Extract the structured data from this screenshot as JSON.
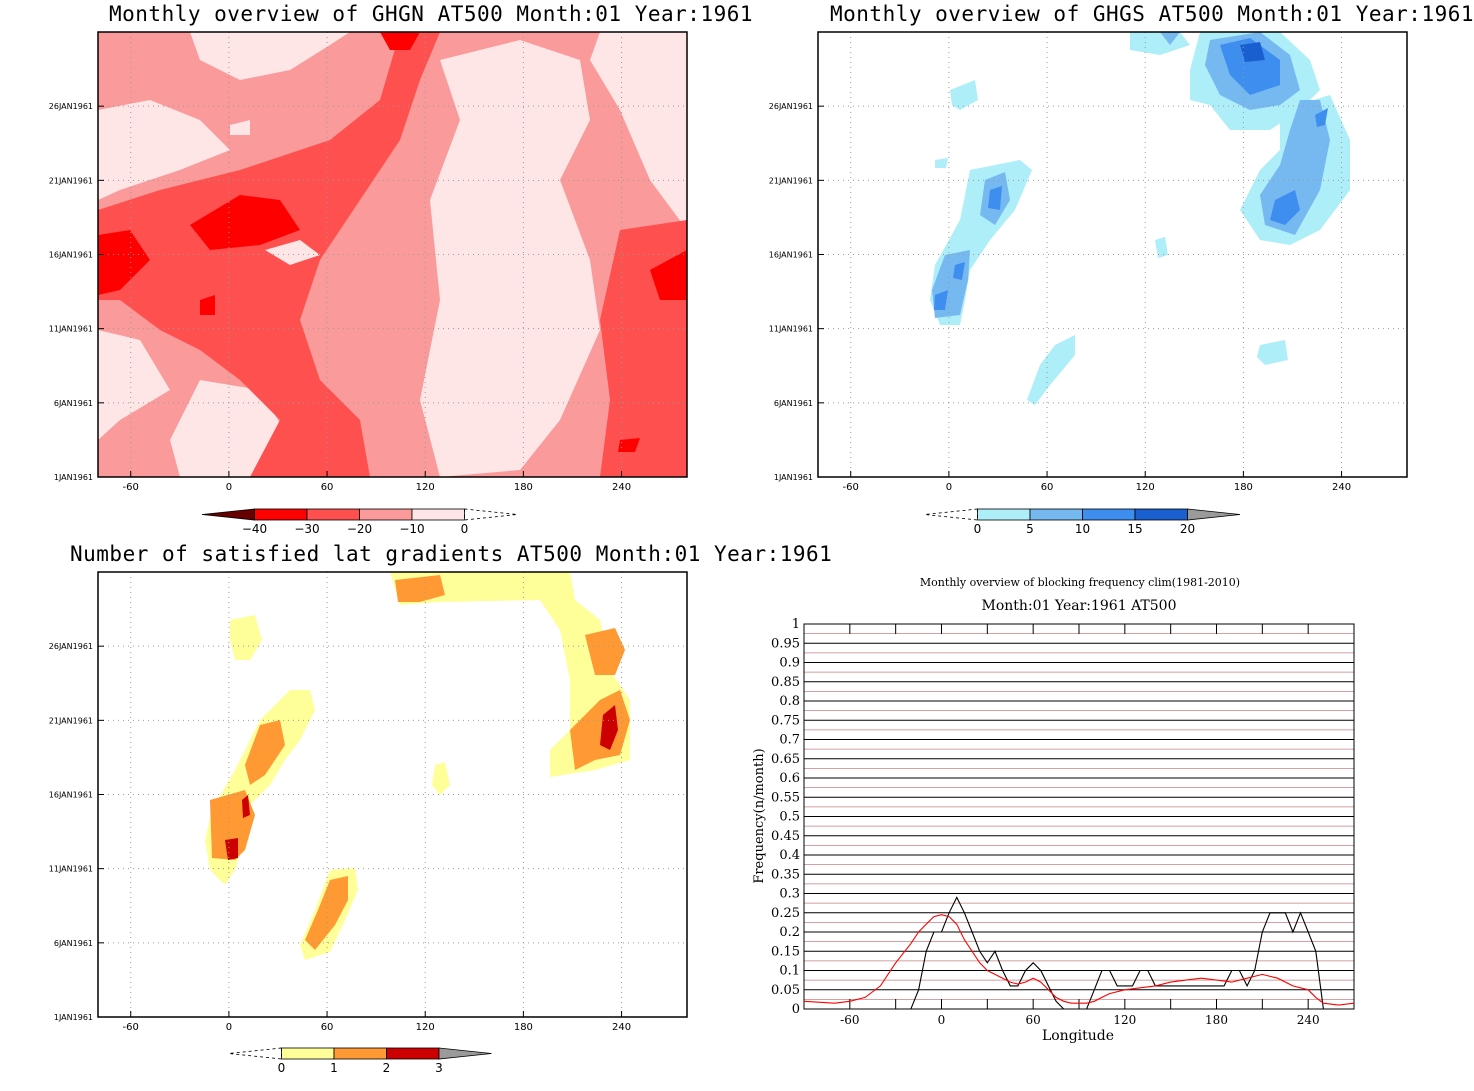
{
  "colors": {
    "red_scale": [
      "#660000",
      "#ff0000",
      "#ff5050",
      "#fa9a9a",
      "#ffe6e6"
    ],
    "blue_scale": [
      "#aeeef8",
      "#76b8f0",
      "#3e8ef0",
      "#1a5fd0",
      "#9a9a9a"
    ],
    "warm_scale": [
      "#ffff99",
      "#ff9933",
      "#cc0000",
      "#9a9a9a"
    ]
  },
  "chart_data": [
    {
      "type": "heatmap",
      "title": "Monthly overview of GHGN AT500 Month:01 Year:1961",
      "x_ticks": [
        "-60",
        "0",
        "60",
        "120",
        "180",
        "240"
      ],
      "y_ticks": [
        "1JAN1961",
        "6JAN1961",
        "11JAN1961",
        "16JAN1961",
        "21JAN1961",
        "26JAN1961"
      ],
      "xlim": [
        -80,
        280
      ],
      "ylim": [
        "1JAN1961",
        "31JAN1961"
      ],
      "grid": true,
      "colorbar": {
        "labels": [
          "−40",
          "−30",
          "−20",
          "−10",
          "0"
        ]
      }
    },
    {
      "type": "heatmap",
      "title": "Monthly overview of GHGS AT500 Month:01 Year:1961",
      "x_ticks": [
        "-60",
        "0",
        "60",
        "120",
        "180",
        "240"
      ],
      "y_ticks": [
        "1JAN1961",
        "6JAN1961",
        "11JAN1961",
        "16JAN1961",
        "21JAN1961",
        "26JAN1961"
      ],
      "xlim": [
        -80,
        280
      ],
      "ylim": [
        "1JAN1961",
        "31JAN1961"
      ],
      "grid": true,
      "colorbar": {
        "labels": [
          "0",
          "5",
          "10",
          "15",
          "20"
        ]
      }
    },
    {
      "type": "heatmap",
      "title": "Number of satisfied lat gradients AT500 Month:01 Year:1961",
      "x_ticks": [
        "-60",
        "0",
        "60",
        "120",
        "180",
        "240"
      ],
      "y_ticks": [
        "1JAN1961",
        "6JAN1961",
        "11JAN1961",
        "16JAN1961",
        "21JAN1961",
        "26JAN1961"
      ],
      "xlim": [
        -80,
        280
      ],
      "ylim": [
        "1JAN1961",
        "31JAN1961"
      ],
      "grid": true,
      "colorbar": {
        "labels": [
          "0",
          "1",
          "2",
          "3"
        ]
      }
    },
    {
      "type": "line",
      "title": "Monthly overview of blocking frequency clim(1981-2010)",
      "subtitle": "Month:01 Year:1961  AT500",
      "xlabel": "Longitude",
      "ylabel": "Frequency(n/month)",
      "xlim": [
        -90,
        270
      ],
      "ylim": [
        0,
        1
      ],
      "x_ticks": [
        "-60",
        "0",
        "60",
        "120",
        "180",
        "240"
      ],
      "y_ticks": [
        "0",
        "0.05",
        "0.1",
        "0.15",
        "0.2",
        "0.25",
        "0.3",
        "0.35",
        "0.4",
        "0.45",
        "0.5",
        "0.55",
        "0.6",
        "0.65",
        "0.7",
        "0.75",
        "0.8",
        "0.85",
        "0.9",
        "0.95",
        "1"
      ],
      "series": [
        {
          "color": "#000000",
          "x": [
            -90,
            -20,
            -15,
            -10,
            -5,
            0,
            5,
            10,
            15,
            20,
            25,
            30,
            35,
            40,
            45,
            50,
            55,
            60,
            65,
            70,
            75,
            80,
            85,
            90,
            95,
            100,
            105,
            110,
            115,
            120,
            125,
            130,
            135,
            140,
            145,
            150,
            155,
            160,
            165,
            170,
            175,
            180,
            185,
            190,
            195,
            200,
            205,
            210,
            215,
            220,
            225,
            230,
            235,
            240,
            245,
            250,
            270
          ],
          "y": [
            0,
            0,
            0.05,
            0.15,
            0.2,
            0.2,
            0.25,
            0.29,
            0.25,
            0.2,
            0.15,
            0.12,
            0.15,
            0.1,
            0.06,
            0.06,
            0.1,
            0.12,
            0.1,
            0.06,
            0.02,
            0,
            0,
            0,
            0,
            0.05,
            0.1,
            0.1,
            0.06,
            0.06,
            0.06,
            0.1,
            0.1,
            0.06,
            0.06,
            0.06,
            0.06,
            0.06,
            0.06,
            0.06,
            0.06,
            0.06,
            0.06,
            0.1,
            0.1,
            0.06,
            0.1,
            0.2,
            0.25,
            0.25,
            0.25,
            0.2,
            0.25,
            0.2,
            0.15,
            0,
            0
          ]
        },
        {
          "color": "#ff0000",
          "x": [
            -90,
            -70,
            -60,
            -50,
            -40,
            -30,
            -20,
            -15,
            -10,
            -5,
            0,
            5,
            10,
            15,
            20,
            25,
            30,
            35,
            40,
            45,
            50,
            55,
            60,
            65,
            70,
            75,
            80,
            85,
            90,
            95,
            100,
            105,
            110,
            120,
            130,
            140,
            150,
            160,
            170,
            180,
            190,
            200,
            210,
            220,
            230,
            240,
            245,
            250,
            260,
            270
          ],
          "y": [
            0.02,
            0.015,
            0.02,
            0.03,
            0.06,
            0.12,
            0.17,
            0.2,
            0.22,
            0.24,
            0.245,
            0.24,
            0.22,
            0.18,
            0.15,
            0.12,
            0.1,
            0.09,
            0.08,
            0.07,
            0.065,
            0.07,
            0.08,
            0.07,
            0.05,
            0.03,
            0.02,
            0.015,
            0.015,
            0.015,
            0.02,
            0.03,
            0.04,
            0.05,
            0.055,
            0.06,
            0.07,
            0.075,
            0.08,
            0.075,
            0.07,
            0.08,
            0.09,
            0.08,
            0.06,
            0.05,
            0.03,
            0.015,
            0.01,
            0.015
          ]
        }
      ]
    }
  ]
}
